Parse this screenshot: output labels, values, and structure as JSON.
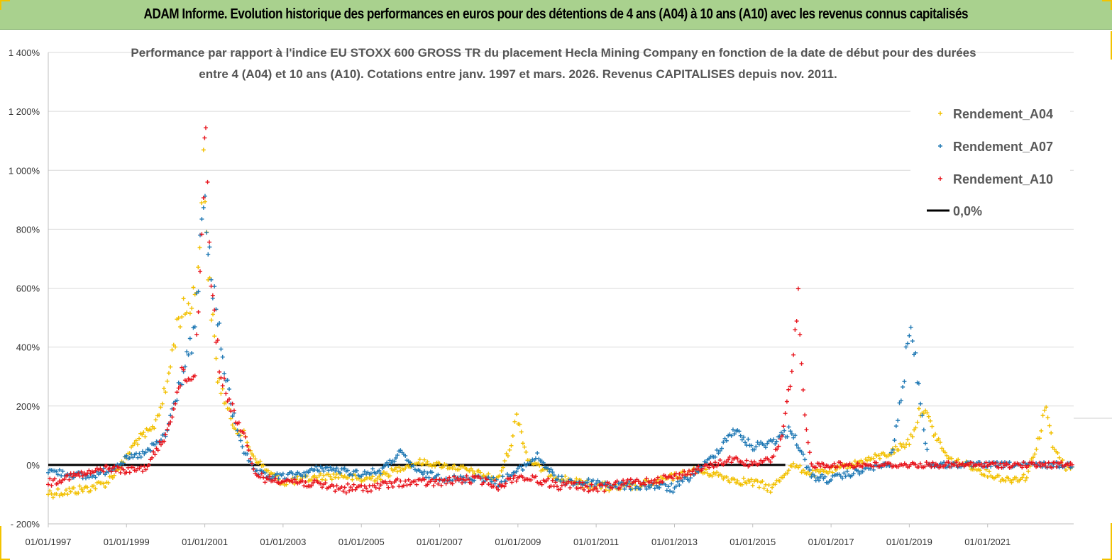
{
  "header": {
    "title": "ADAM Informe. Evolution historique des performances en euros pour des détentions de 4 ans (A04) à 10 ans (A10) avec les revenus connus capitalisés"
  },
  "colors": {
    "a04": "#f2c000",
    "a07": "#1f78b4",
    "a10": "#e8141c",
    "zero": "#000000",
    "grid": "#d9d9d9",
    "banner": "#a9d18e"
  },
  "chart_data": {
    "type": "scatter",
    "title_lines": [
      "Performance par rapport à l'indice EU STOXX 600 GROSS TR  du placement Hecla Mining Company en fonction de la date de début pour des durées",
      "entre 4 (A04) et 10 ans (A10). Cotations entre janv. 1997 et mars. 2026. Revenus CAPITALISES depuis nov. 2011."
    ],
    "xlabel": "",
    "ylabel": "",
    "x_range": [
      "1997-01-01",
      "2023-03-15"
    ],
    "ylim": [
      -200,
      1400
    ],
    "y_ticks": [
      -200,
      0,
      200,
      400,
      600,
      800,
      1000,
      1200,
      1400
    ],
    "y_tick_labels": [
      "- 200%",
      "0%",
      "200%",
      "400%",
      "600%",
      "800%",
      "1 000%",
      "1 200%",
      "1 400%"
    ],
    "x_ticks": [
      "1997-01-01",
      "1999-01-01",
      "2001-01-01",
      "2003-01-01",
      "2005-01-01",
      "2007-01-01",
      "2009-01-01",
      "2011-01-01",
      "2013-01-01",
      "2015-01-01",
      "2017-01-01",
      "2019-01-01",
      "2021-01-01"
    ],
    "x_tick_labels": [
      "01/01/1997",
      "01/01/1999",
      "01/01/2001",
      "01/01/2003",
      "01/01/2005",
      "01/01/2007",
      "01/01/2009",
      "01/01/2011",
      "01/01/2013",
      "01/01/2015",
      "01/01/2017",
      "01/01/2019",
      "01/01/2021"
    ],
    "grid": "horizontal",
    "legend_position": "top-right",
    "legend": [
      "Rendement_A04",
      "Rendement_A07",
      "Rendement_A10",
      "0,0%"
    ],
    "series": [
      {
        "name": "Rendement_A04",
        "marker": "+",
        "x": [
          "1997-01-01",
          "1997-07-01",
          "1998-01-01",
          "1998-07-01",
          "1998-12-01",
          "1999-04-01",
          "1999-09-01",
          "2000-01-01",
          "2000-05-01",
          "2000-09-01",
          "2000-11-15",
          "2000-12-20",
          "2001-02-01",
          "2001-05-01",
          "2001-09-01",
          "2002-01-01",
          "2002-04-01",
          "2002-08-01",
          "2003-01-01",
          "2003-07-01",
          "2004-01-01",
          "2004-07-01",
          "2005-01-01",
          "2005-07-01",
          "2006-01-01",
          "2006-07-01",
          "2007-01-01",
          "2007-07-01",
          "2008-01-01",
          "2008-07-01",
          "2008-11-15",
          "2008-12-20",
          "2009-04-01",
          "2009-09-01",
          "2010-01-01",
          "2010-07-01",
          "2011-01-01",
          "2011-07-01",
          "2012-01-01",
          "2012-07-01",
          "2013-01-01",
          "2013-07-01",
          "2014-01-01",
          "2014-07-01",
          "2015-01-01",
          "2015-07-01",
          "2016-01-01",
          "2016-07-01",
          "2017-01-01",
          "2017-07-01",
          "2018-01-01",
          "2018-07-01",
          "2019-01-01",
          "2019-05-01",
          "2019-09-01",
          "2020-01-01",
          "2020-07-01",
          "2021-01-01",
          "2021-07-01",
          "2022-01-01",
          "2022-05-01",
          "2022-07-01",
          "2022-09-01",
          "2023-01-01",
          "2023-03-15"
        ],
        "values": [
          -95,
          -90,
          -80,
          -60,
          10,
          80,
          120,
          250,
          500,
          550,
          700,
          1100,
          650,
          300,
          150,
          100,
          30,
          -20,
          -60,
          -50,
          -40,
          -35,
          -50,
          -40,
          -10,
          10,
          0,
          -10,
          -30,
          -50,
          90,
          180,
          20,
          -20,
          -40,
          -60,
          -70,
          -80,
          -70,
          -60,
          -40,
          -20,
          -30,
          -50,
          -60,
          -80,
          0,
          -30,
          -20,
          0,
          20,
          40,
          80,
          200,
          100,
          20,
          0,
          -30,
          -50,
          -40,
          100,
          200,
          60,
          -10,
          0
        ]
      },
      {
        "name": "Rendement_A07",
        "marker": "+",
        "x": [
          "1997-01-01",
          "1997-07-01",
          "1998-01-01",
          "1998-07-01",
          "1999-01-01",
          "1999-07-01",
          "2000-01-01",
          "2000-06-01",
          "2000-10-01",
          "2000-12-20",
          "2001-03-01",
          "2001-06-01",
          "2001-09-01",
          "2002-01-01",
          "2002-04-01",
          "2002-08-01",
          "2003-01-01",
          "2003-07-01",
          "2004-01-01",
          "2004-07-01",
          "2005-01-01",
          "2005-07-01",
          "2006-01-01",
          "2006-07-01",
          "2007-01-01",
          "2007-07-01",
          "2008-01-01",
          "2008-07-01",
          "2009-01-01",
          "2009-07-01",
          "2010-01-01",
          "2010-07-01",
          "2011-01-01",
          "2011-07-01",
          "2012-01-01",
          "2012-07-01",
          "2013-01-01",
          "2013-07-01",
          "2014-01-01",
          "2014-07-01",
          "2015-01-01",
          "2015-07-01",
          "2016-01-01",
          "2016-07-01",
          "2017-01-01",
          "2017-07-01",
          "2018-01-01",
          "2018-07-01",
          "2018-11-01",
          "2019-01-01",
          "2019-03-01",
          "2019-07-01",
          "2020-01-01",
          "2021-01-01",
          "2022-01-01",
          "2023-03-15"
        ],
        "values": [
          -20,
          -30,
          -40,
          -20,
          20,
          40,
          100,
          300,
          450,
          900,
          650,
          400,
          200,
          50,
          -20,
          -40,
          -40,
          -30,
          -10,
          -20,
          -30,
          -20,
          40,
          -30,
          -40,
          -50,
          -40,
          -60,
          -20,
          30,
          -50,
          -60,
          -60,
          -70,
          -70,
          -70,
          -80,
          -30,
          30,
          120,
          60,
          80,
          120,
          -40,
          -50,
          -30,
          -10,
          0,
          250,
          480,
          350,
          0,
          0,
          0,
          0,
          0
        ]
      },
      {
        "name": "Rendement_A10",
        "marker": "+",
        "x": [
          "1997-01-01",
          "1997-07-01",
          "1998-01-01",
          "1998-07-01",
          "1999-01-01",
          "1999-07-01",
          "2000-01-01",
          "2000-06-01",
          "2000-10-01",
          "2000-12-20",
          "2001-01-10",
          "2001-03-01",
          "2001-06-01",
          "2001-09-01",
          "2002-01-01",
          "2002-04-01",
          "2002-08-01",
          "2003-01-01",
          "2003-07-01",
          "2004-01-01",
          "2004-07-01",
          "2005-01-01",
          "2005-07-01",
          "2006-01-01",
          "2006-07-01",
          "2007-01-01",
          "2007-07-01",
          "2008-01-01",
          "2008-07-01",
          "2009-01-01",
          "2009-07-01",
          "2010-01-01",
          "2010-07-01",
          "2011-01-01",
          "2011-07-01",
          "2012-01-01",
          "2012-07-01",
          "2013-01-01",
          "2013-07-01",
          "2014-01-01",
          "2014-07-01",
          "2015-01-01",
          "2015-07-01",
          "2015-10-01",
          "2016-01-01",
          "2016-03-01",
          "2016-05-01",
          "2016-07-01",
          "2017-01-01",
          "2018-01-01",
          "2019-01-01",
          "2020-01-01",
          "2021-01-01",
          "2022-01-01",
          "2023-03-15"
        ],
        "values": [
          -60,
          -40,
          -30,
          -10,
          -20,
          -10,
          100,
          300,
          300,
          950,
          1200,
          600,
          300,
          200,
          100,
          -20,
          -50,
          -50,
          -60,
          -70,
          -80,
          -80,
          -70,
          -60,
          -60,
          -60,
          -50,
          -50,
          -70,
          -40,
          -50,
          -70,
          -70,
          -80,
          -70,
          -60,
          -50,
          -40,
          -20,
          0,
          20,
          0,
          20,
          100,
          300,
          550,
          150,
          0,
          0,
          0,
          0,
          0,
          0,
          0,
          0
        ]
      },
      {
        "name": "0,0%",
        "marker": "line",
        "x": [
          "1997-01-01",
          "2015-11-01"
        ],
        "values": [
          0,
          0
        ]
      }
    ]
  }
}
